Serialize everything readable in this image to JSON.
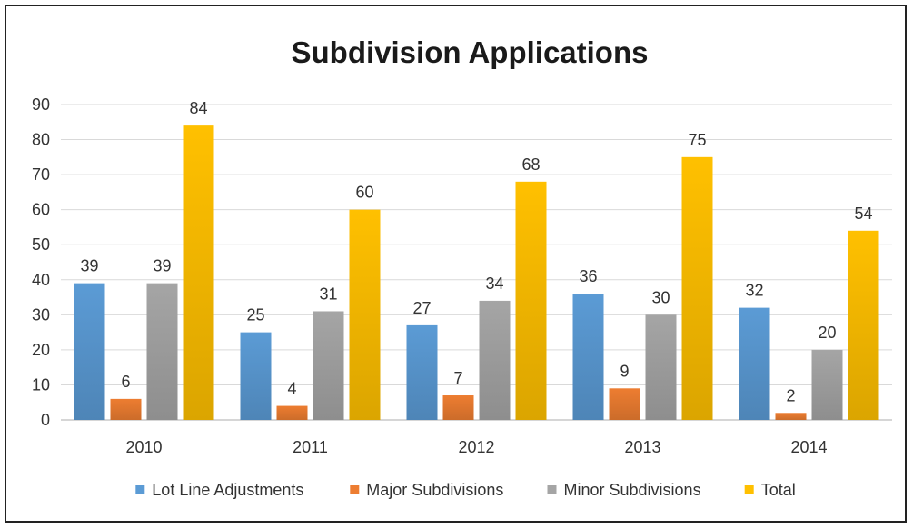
{
  "chart_data": {
    "type": "bar",
    "title": "Subdivision Applications",
    "xlabel": "",
    "ylabel": "",
    "categories": [
      "2010",
      "2011",
      "2012",
      "2013",
      "2014"
    ],
    "series": [
      {
        "name": "Lot Line Adjustments",
        "values": [
          39,
          25,
          27,
          36,
          32
        ],
        "color": "#5B9BD5"
      },
      {
        "name": "Major Subdivisions",
        "values": [
          6,
          4,
          7,
          9,
          2
        ],
        "color": "#ED7D31"
      },
      {
        "name": "Minor Subdivisions",
        "values": [
          39,
          31,
          34,
          30,
          20
        ],
        "color": "#A5A5A5"
      },
      {
        "name": "Total",
        "values": [
          84,
          60,
          68,
          75,
          54
        ],
        "color": "#FFC000"
      }
    ],
    "ylim": [
      0,
      90
    ],
    "yticks": [
      0,
      10,
      20,
      30,
      40,
      50,
      60,
      70,
      80,
      90
    ],
    "grid": true,
    "data_labels": true,
    "legend_position": "bottom"
  }
}
